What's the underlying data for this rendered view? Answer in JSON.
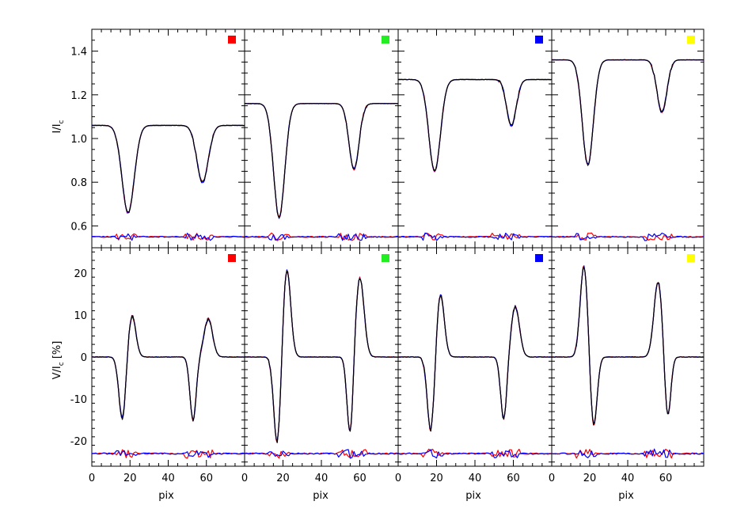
{
  "colors": {
    "red": "#ff0000",
    "green": "#22ee22",
    "blue": "#0000ff",
    "yellow": "#ffff00",
    "black": "#000000"
  },
  "chart_data": [
    {
      "panel": "I-red",
      "type": "line",
      "row": "I",
      "marker_color": "#ff0000",
      "ylabel": "I/Ic",
      "xlabel": "",
      "xlim": [
        0,
        80
      ],
      "ylim": [
        0.5,
        1.5
      ],
      "yticks": [
        0.6,
        0.8,
        1.0,
        1.2,
        1.4
      ],
      "line_profile": {
        "continuum": 1.06,
        "dip1_center": 19,
        "dip1_depth": 0.4,
        "dip1_width": 3.2,
        "dip2_center": 58,
        "dip2_depth": 0.26,
        "dip2_width": 3.0
      },
      "residual_baseline": 0.55
    },
    {
      "panel": "I-green",
      "type": "line",
      "row": "I",
      "marker_color": "#22ee22",
      "xlim": [
        0,
        80
      ],
      "ylim": [
        0.5,
        1.5
      ],
      "line_profile": {
        "continuum": 1.16,
        "dip1_center": 18,
        "dip1_depth": 0.52,
        "dip1_width": 2.9,
        "dip2_center": 57,
        "dip2_depth": 0.3,
        "dip2_width": 2.6
      },
      "residual_baseline": 0.55
    },
    {
      "panel": "I-blue",
      "type": "line",
      "row": "I",
      "marker_color": "#0000ff",
      "xlim": [
        0,
        80
      ],
      "ylim": [
        0.5,
        1.5
      ],
      "line_profile": {
        "continuum": 1.27,
        "dip1_center": 19,
        "dip1_depth": 0.42,
        "dip1_width": 3.0,
        "dip2_center": 59,
        "dip2_depth": 0.21,
        "dip2_width": 2.5
      },
      "residual_baseline": 0.55
    },
    {
      "panel": "I-yellow",
      "type": "line",
      "row": "I",
      "marker_color": "#ffff00",
      "xlim": [
        0,
        80
      ],
      "ylim": [
        0.5,
        1.5
      ],
      "line_profile": {
        "continuum": 1.36,
        "dip1_center": 19,
        "dip1_depth": 0.48,
        "dip1_width": 2.9,
        "dip2_center": 58,
        "dip2_depth": 0.24,
        "dip2_width": 2.6
      },
      "residual_baseline": 0.55
    },
    {
      "panel": "V-red",
      "type": "line",
      "row": "V",
      "marker_color": "#ff0000",
      "ylabel": "V/Ic [%]",
      "xlabel": "pix",
      "xlim": [
        0,
        80
      ],
      "ylim": [
        -26,
        26
      ],
      "yticks": [
        -20,
        -10,
        0,
        10,
        20
      ],
      "xticks": [
        0,
        20,
        40,
        60
      ],
      "line_profile": {
        "min1": -15,
        "min1_pos": 16,
        "max1": 10,
        "max1_pos": 21,
        "min2": -15,
        "min2_pos": 53,
        "max2": 9,
        "max2_pos": 61
      },
      "residual_baseline": -23
    },
    {
      "panel": "V-green",
      "type": "line",
      "row": "V",
      "marker_color": "#22ee22",
      "xlabel": "pix",
      "xlim": [
        0,
        80
      ],
      "ylim": [
        -26,
        26
      ],
      "xticks": [
        0,
        20,
        40,
        60
      ],
      "line_profile": {
        "min1": -21,
        "min1_pos": 17,
        "max1": 21,
        "max1_pos": 22,
        "min2": -19,
        "min2_pos": 55,
        "max2": 19,
        "max2_pos": 60
      },
      "residual_baseline": -23
    },
    {
      "panel": "V-blue",
      "type": "line",
      "row": "V",
      "marker_color": "#0000ff",
      "xlabel": "pix",
      "xlim": [
        0,
        80
      ],
      "ylim": [
        -26,
        26
      ],
      "xticks": [
        0,
        20,
        40,
        60
      ],
      "line_profile": {
        "min1": -18,
        "min1_pos": 17,
        "max1": 15,
        "max1_pos": 22,
        "min2": -15,
        "min2_pos": 55,
        "max2": 12,
        "max2_pos": 61
      },
      "residual_baseline": -23
    },
    {
      "panel": "V-yellow",
      "type": "line",
      "row": "V",
      "marker_color": "#ffff00",
      "xlabel": "pix",
      "xlim": [
        0,
        80
      ],
      "ylim": [
        -26,
        26
      ],
      "xticks": [
        0,
        20,
        40,
        60
      ],
      "line_profile": {
        "min1": -17,
        "min1_pos": 22,
        "max1": 22,
        "max1_pos": 17,
        "min2": -15,
        "min2_pos": 61,
        "max2": 18,
        "max2_pos": 56
      },
      "residual_baseline": -23
    }
  ],
  "labels": {
    "i_ylabel_main": "I/I",
    "i_ylabel_sub": "c",
    "v_ylabel_main": "V/I",
    "v_ylabel_sub": "c",
    "v_ylabel_unit": " [%]",
    "xlabel": "pix"
  },
  "series_colors": [
    "#ff0000",
    "#0000ff",
    "#000000"
  ]
}
